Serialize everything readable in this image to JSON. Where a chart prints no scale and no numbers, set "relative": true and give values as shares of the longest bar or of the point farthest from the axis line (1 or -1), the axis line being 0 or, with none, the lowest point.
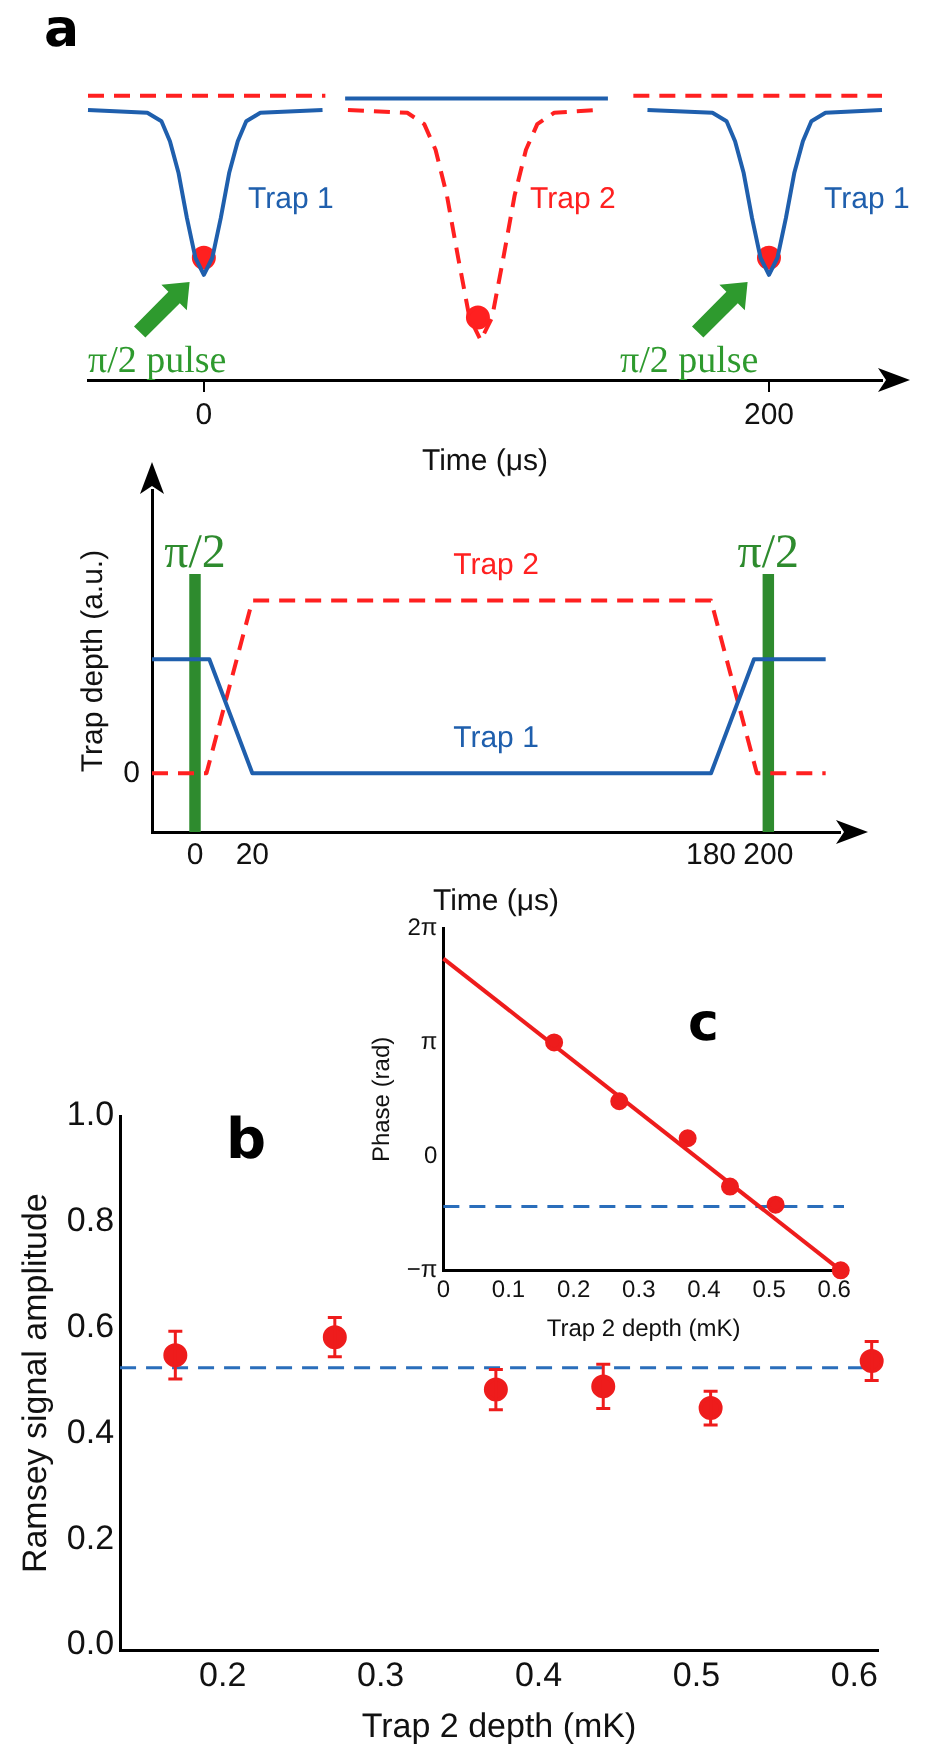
{
  "chart_data": [
    {
      "type": "line",
      "title": "a",
      "xlabel": "Time (μs)",
      "relative": true,
      "tick_labels": "x",
      "xlim": [
        -41,
        240
      ],
      "xticks": [
        0,
        200
      ],
      "series": [
        {
          "name": "Trap 1",
          "color": "#1f5fad",
          "line_style": "solid",
          "x": [
            -41,
            -20,
            -15,
            -12,
            -9,
            -6,
            -3,
            0,
            3,
            6,
            9,
            12,
            15,
            20,
            42,
            46,
            50,
            143,
            150,
            157,
            180,
            185,
            188,
            191,
            194,
            197,
            200,
            203,
            206,
            209,
            212,
            215,
            220,
            240
          ],
          "values": [
            0.95,
            0.94,
            0.91,
            0.84,
            0.73,
            0.57,
            0.43,
            0.37,
            0.43,
            0.57,
            0.73,
            0.84,
            0.91,
            0.94,
            0.95,
            null,
            0.99,
            0.99,
            null,
            0.95,
            0.94,
            0.91,
            0.84,
            0.73,
            0.57,
            0.43,
            0.37,
            0.43,
            0.57,
            0.73,
            0.84,
            0.91,
            0.94,
            0.95
          ]
        },
        {
          "name": "Trap 2",
          "color": "#ff2020",
          "line_style": "dashed",
          "x": [
            -41,
            43,
            46,
            51,
            72,
            78,
            82,
            86,
            90,
            94,
            98,
            102,
            106,
            110,
            114,
            118,
            124,
            140,
            146,
            152,
            240
          ],
          "values": [
            1,
            1,
            null,
            0.95,
            0.94,
            0.9,
            0.81,
            0.65,
            0.43,
            0.22,
            0.14,
            0.22,
            0.43,
            0.65,
            0.81,
            0.9,
            0.94,
            0.95,
            null,
            1,
            1
          ]
        },
        {
          "type": "scatter",
          "marker": "circle",
          "color": "#ff2020",
          "x": [
            0,
            97,
            200
          ],
          "values": [
            0.43,
            0.22,
            0.43
          ]
        }
      ],
      "annotations": [
        "π/2 pulse",
        "π/2 pulse"
      ]
    },
    {
      "type": "line",
      "xlabel": "Time (μs)",
      "ylabel": "Trap depth (a.u.)",
      "relative": true,
      "xlim": [
        -15,
        225
      ],
      "xticks": [
        0,
        20,
        180,
        200
      ],
      "line_style": "solid",
      "series": [
        {
          "name": "Trap 1",
          "color": "#1f5fad",
          "x": [
            -15,
            5,
            20,
            180,
            195,
            220
          ],
          "values": [
            0.66,
            0.66,
            0,
            0,
            0.66,
            0.66
          ]
        },
        {
          "name": "Trap 2",
          "color": "#ff2020",
          "line_style": "dashed",
          "x": [
            -15,
            4,
            20,
            180,
            196,
            220
          ],
          "values": [
            0,
            0,
            1,
            1,
            0,
            0
          ]
        }
      ],
      "bands": [
        {
          "axis": "x",
          "from": -2,
          "to": 2,
          "label": "π/2",
          "color": "#2e8b2e"
        },
        {
          "axis": "x",
          "from": 198,
          "to": 202,
          "label": "π/2",
          "color": "#2e8b2e"
        }
      ],
      "annotations": [
        "0"
      ]
    },
    {
      "type": "scatter",
      "title": "b",
      "xlabel": "Trap 2 depth (mK)",
      "ylabel": "Ramsey signal amplitude",
      "marker": "circle",
      "color": "#ee1c1c",
      "x": [
        0.17,
        0.271,
        0.373,
        0.441,
        0.509,
        0.611
      ],
      "values": [
        0.548,
        0.582,
        0.483,
        0.489,
        0.448,
        0.537
      ],
      "errors": [
        0.045,
        0.037,
        0.038,
        0.042,
        0.032,
        0.037
      ],
      "xlim": [
        0.135,
        0.615
      ],
      "xticks": [
        0.2,
        0.3,
        0.4,
        0.5,
        0.6
      ],
      "ylim": [
        -0.01,
        1.0
      ],
      "yticks": [
        {
          "value": 0,
          "label": "0.0"
        },
        0.2,
        0.4,
        0.6,
        0.8,
        {
          "value": 1,
          "label": "1.0"
        }
      ],
      "ref_lines": [
        {
          "axis": "y",
          "value": 0.524,
          "color": "#2a6ebb",
          "line_style": "dashed"
        }
      ]
    },
    {
      "type": "scatter",
      "title": "c",
      "xlabel": "Trap 2 depth (mK)",
      "ylabel": "Phase (rad)",
      "marker": "circle",
      "series": [
        {
          "color": "#ee1c1c",
          "x": [
            0.17,
            0.27,
            0.375,
            0.44,
            0.51,
            0.61
          ],
          "values": [
            3.14,
            1.52,
            0.5,
            -0.83,
            -1.33,
            -3.14
          ]
        },
        {
          "type": "line",
          "color": "#ee1c1c",
          "marker": "none",
          "x": [
            0,
            0.61
          ],
          "values": [
            5.45,
            -3.14
          ]
        }
      ],
      "xlim": [
        0,
        0.615
      ],
      "xticks": [
        0,
        0.1,
        0.2,
        0.3,
        0.4,
        0.5,
        0.6
      ],
      "ylim": [
        -3.1416,
        6.2832
      ],
      "yticks": [
        {
          "value": -3.1416,
          "label": "−π"
        },
        0,
        {
          "value": 3.1416,
          "label": "π"
        },
        {
          "value": 6.2832,
          "label": "2π"
        }
      ],
      "ref_lines": [
        {
          "axis": "y",
          "value": -1.38,
          "color": "#2a6ebb",
          "line_style": "dashed"
        }
      ]
    }
  ]
}
